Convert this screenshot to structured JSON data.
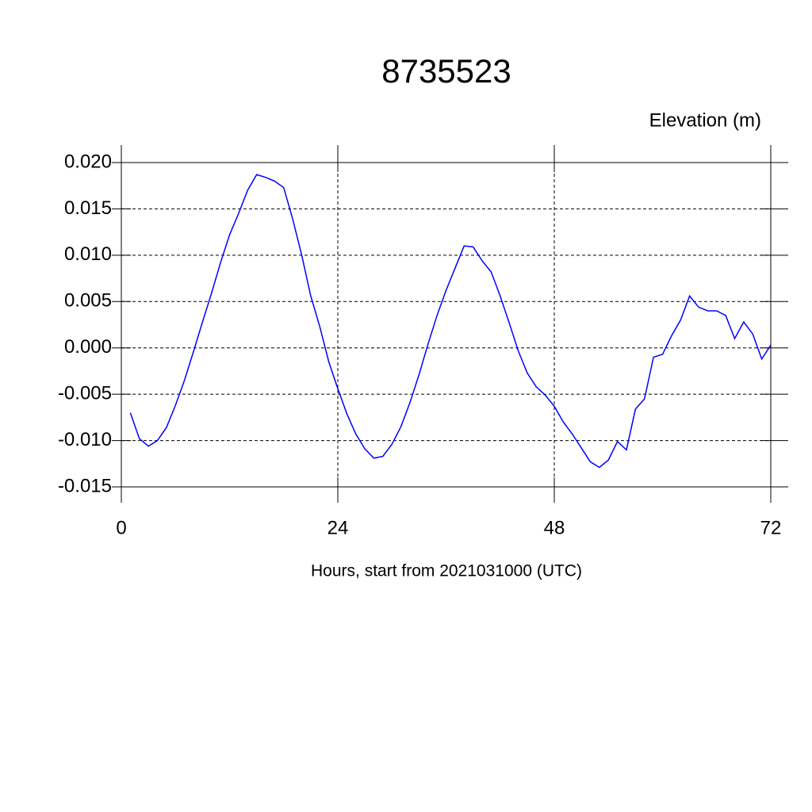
{
  "chart_data": {
    "type": "line",
    "title": "8735523",
    "subtitle": "Elevation (m)",
    "x_label": "Hours, start from 2021031000 (UTC)",
    "x": [
      1,
      2,
      3,
      4,
      5,
      6,
      7,
      8,
      9,
      10,
      11,
      12,
      13,
      14,
      15,
      16,
      17,
      18,
      19,
      20,
      21,
      22,
      23,
      24,
      25,
      26,
      27,
      28,
      29,
      30,
      31,
      32,
      33,
      34,
      35,
      36,
      37,
      38,
      39,
      40,
      41,
      42,
      43,
      44,
      45,
      46,
      47,
      48,
      49,
      50,
      51,
      52,
      53,
      54,
      55,
      56,
      57,
      58,
      59,
      60,
      61,
      62,
      63,
      64,
      65,
      66,
      67,
      68,
      69,
      70,
      71,
      72
    ],
    "series": [
      {
        "color": "#0000ff",
        "values": [
          -0.007,
          -0.0098,
          -0.0106,
          -0.01,
          -0.0086,
          -0.0062,
          -0.0035,
          -0.0004,
          0.0028,
          0.0059,
          0.0092,
          0.0122,
          0.0145,
          0.017,
          0.0187,
          0.0184,
          0.018,
          0.0173,
          0.0139,
          0.01,
          0.0056,
          0.0023,
          -0.0015,
          -0.0044,
          -0.0071,
          -0.0093,
          -0.0109,
          -0.0119,
          -0.0117,
          -0.0104,
          -0.0085,
          -0.0059,
          -0.0029,
          0.0004,
          0.0035,
          0.0062,
          0.0086,
          0.011,
          0.0109,
          0.0094,
          0.0082,
          0.0056,
          0.0027,
          -0.0003,
          -0.0027,
          -0.0042,
          -0.0051,
          -0.0063,
          -0.008,
          -0.0093,
          -0.0108,
          -0.0123,
          -0.0129,
          -0.0121,
          -0.0101,
          -0.011,
          -0.0066,
          -0.0055,
          -0.001,
          -0.0007,
          0.0013,
          0.003,
          0.0056,
          0.0044,
          0.004,
          0.004,
          0.0035,
          0.001,
          0.0028,
          0.0015,
          -0.0012,
          0.0003
        ]
      }
    ],
    "xlim": [
      0,
      72
    ],
    "xticks": [
      0,
      24,
      48,
      72
    ],
    "ylim": [
      -0.015,
      0.02
    ],
    "yticks": [
      {
        "value": -0.015,
        "label": "-0.015"
      },
      {
        "value": -0.01,
        "label": "-0.010"
      },
      {
        "value": -0.005,
        "label": "-0.005"
      },
      {
        "value": 0,
        "label": "0.000"
      },
      {
        "value": 0.005,
        "label": "0.005"
      },
      {
        "value": 0.01,
        "label": "0.010"
      },
      {
        "value": 0.015,
        "label": "0.015"
      },
      {
        "value": 0.02,
        "label": "0.020"
      }
    ],
    "grid": true
  }
}
